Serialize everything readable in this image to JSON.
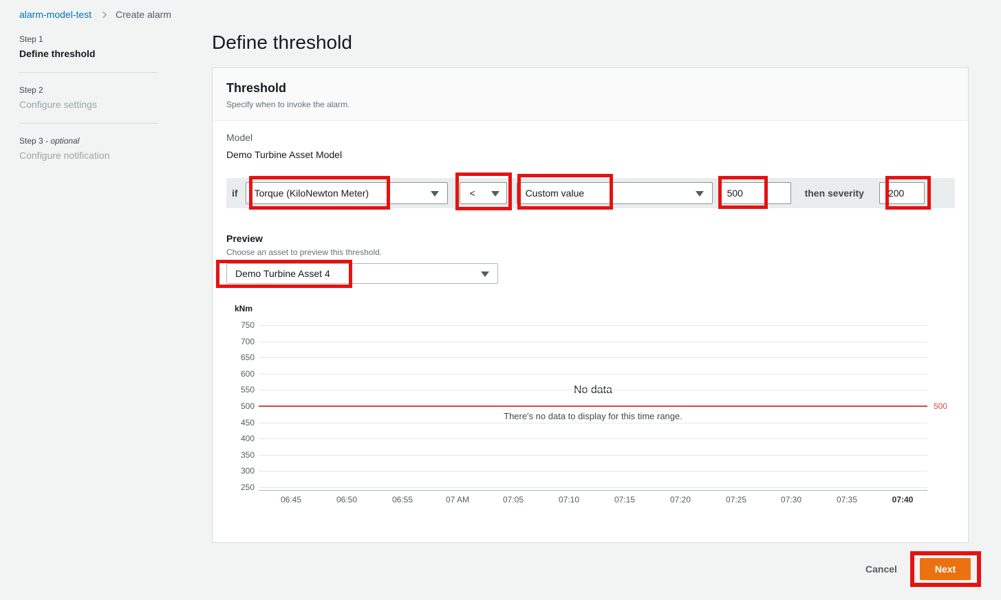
{
  "breadcrumb": {
    "parent": "alarm-model-test",
    "current": "Create alarm"
  },
  "steps_nav": {
    "steps": [
      {
        "step_label": "Step 1",
        "title": "Define threshold",
        "active": true
      },
      {
        "step_label": "Step 2",
        "title": "Configure settings",
        "active": false
      },
      {
        "step_label": "Step 3",
        "optional_suffix": "- optional",
        "title": "Configure notification",
        "active": false
      }
    ]
  },
  "page": {
    "title": "Define threshold"
  },
  "threshold_card": {
    "title": "Threshold",
    "description": "Specify when to invoke the alarm.",
    "model_label": "Model",
    "model_name": "Demo Turbine Asset Model",
    "condition": {
      "if_label": "if",
      "property": "Torque (KiloNewton Meter)",
      "operator": "<",
      "value_type": "Custom value",
      "threshold_value": "500",
      "then_label": "then severity",
      "severity_value": "200"
    },
    "preview": {
      "label": "Preview",
      "description": "Choose an asset to preview this threshold.",
      "asset": "Demo Turbine Asset 4"
    }
  },
  "chart_data": {
    "type": "line",
    "unit_label": "kNm",
    "y_ticks": [
      750,
      700,
      650,
      600,
      550,
      500,
      450,
      400,
      350,
      300,
      250
    ],
    "ylim": [
      250,
      750
    ],
    "x_ticks": [
      "06:45",
      "06:50",
      "06:55",
      "07 AM",
      "07:05",
      "07:10",
      "07:15",
      "07:20",
      "07:25",
      "07:30",
      "07:35",
      "07:40"
    ],
    "series": [],
    "grid": true,
    "legend": "none",
    "threshold": {
      "value": 500,
      "label": "500",
      "color": "#d04a43"
    },
    "empty_state": {
      "title": "No data",
      "message": "There's no data to display for this time range."
    }
  },
  "footer": {
    "cancel_label": "Cancel",
    "next_label": "Next"
  },
  "colors": {
    "accent_orange": "#ec7211",
    "link_blue": "#0073bb",
    "annotation_red": "#e61212",
    "threshold_red": "#d04a43",
    "band_gray": "#eaeded"
  }
}
